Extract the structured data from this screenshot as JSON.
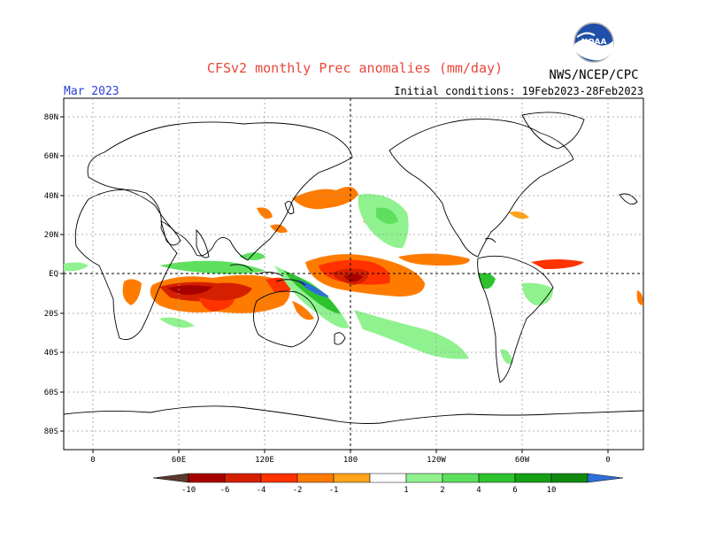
{
  "title": "CFSv2 monthly Prec anomalies (mm/day)",
  "agency": "NWS/NCEP/CPC",
  "logo_text": "NOAA",
  "valid_month": "Mar 2023",
  "initial_conditions": "Initial conditions: 19Feb2023-28Feb2023",
  "lat_labels": [
    "80N",
    "60N",
    "40N",
    "20N",
    "EQ",
    "20S",
    "40S",
    "60S",
    "80S"
  ],
  "lon_labels": [
    "0",
    "60E",
    "120E",
    "180",
    "120W",
    "60W",
    "0"
  ],
  "colorbar": {
    "ticks": [
      "-10",
      "-6",
      "-4",
      "-2",
      "-1",
      "1",
      "2",
      "4",
      "6",
      "10"
    ],
    "colors": [
      "#5a3a2e",
      "#a80000",
      "#d42000",
      "#ff3200",
      "#ff7b00",
      "#ffa41a",
      "#ffffff",
      "#8ff28f",
      "#5ee05e",
      "#2ec22e",
      "#15a015",
      "#0f8a0f",
      "#2e6fd8"
    ]
  },
  "map_features": [
    "negative anomalies over Indian Ocean",
    "negative anomalies over central Pacific near equator",
    "positive anomalies over SW Pacific (SPCZ)",
    "positive anomalies NE of Hawaii"
  ]
}
